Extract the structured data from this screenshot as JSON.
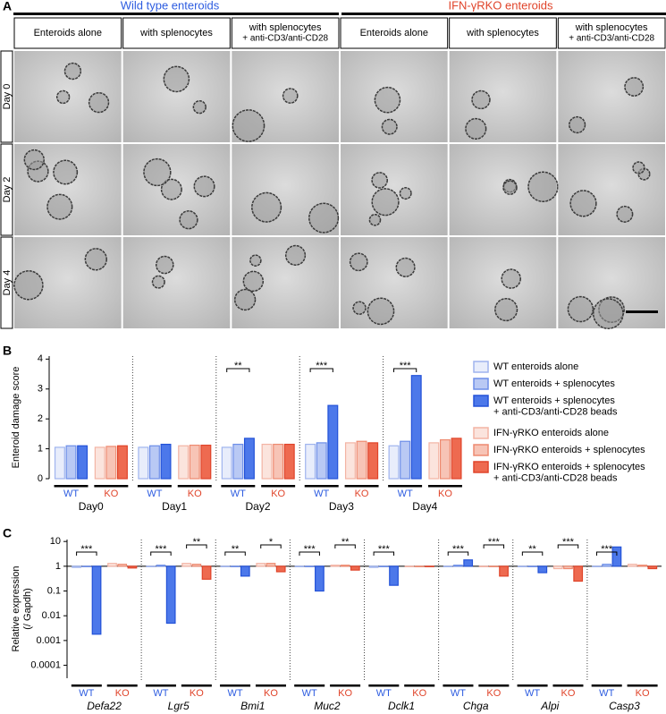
{
  "panel_a": {
    "label": "A",
    "groups": [
      "Wild type enteroids",
      "IFN-γRKO enteroids"
    ],
    "columns": [
      "Enteroids alone",
      "with splenocytes",
      "with splenocytes\n+ anti-CD3/anti-CD28",
      "Enteroids alone",
      "with splenocytes",
      "with splenocytes\n+ anti-CD3/anti-CD28"
    ],
    "rows": [
      "Day 0",
      "Day 2",
      "Day 4"
    ]
  },
  "chart_data": [
    {
      "type": "bar",
      "panel_label": "B",
      "y_label": "Enteroid damage score",
      "categories": [
        "Day0",
        "Day1",
        "Day2",
        "Day3",
        "Day4"
      ],
      "group_labels": [
        "WT",
        "KO"
      ],
      "ylim": [
        0,
        4.1
      ],
      "yticks": [
        0,
        1,
        2,
        3,
        4
      ],
      "legend": "right",
      "series": [
        {
          "name": "WT enteroids alone",
          "color": "#9fb4ee",
          "fill_color": "#e8edfb",
          "values": [
            1.05,
            1.05,
            1.05,
            1.15,
            1.1
          ]
        },
        {
          "name": "WT enteroids + splenocytes",
          "color": "#6d8ee8",
          "fill_color": "#b9c9f4",
          "values": [
            1.1,
            1.1,
            1.15,
            1.2,
            1.25
          ]
        },
        {
          "name": "WT enteroids + splenocytes\n+ anti-CD3/anti-CD28 beads",
          "color": "#2352d8",
          "fill_color": "#4c78ea",
          "values": [
            1.1,
            1.15,
            1.35,
            2.45,
            3.45
          ]
        },
        {
          "name": "IFN-γRKO enteroids alone",
          "color": "#f3b4a4",
          "fill_color": "#fbe4dd",
          "values": [
            1.05,
            1.1,
            1.15,
            1.2,
            1.2
          ]
        },
        {
          "name": "IFN-γRKO enteroids + splenocytes",
          "color": "#ee8a70",
          "fill_color": "#f7c4b6",
          "values": [
            1.08,
            1.12,
            1.15,
            1.25,
            1.3
          ]
        },
        {
          "name": "IFN-γRKO enteroids + splenocytes\n+ anti-CD3/anti-CD28 beads",
          "color": "#e0442a",
          "fill_color": "#ee6a50",
          "values": [
            1.1,
            1.12,
            1.15,
            1.2,
            1.35
          ]
        }
      ],
      "annotations": [
        {
          "category": "Day2",
          "group": "WT",
          "text": "**"
        },
        {
          "category": "Day3",
          "group": "WT",
          "text": "***"
        },
        {
          "category": "Day4",
          "group": "WT",
          "text": "***"
        }
      ]
    },
    {
      "type": "bar",
      "panel_label": "C",
      "y_label": "Relative expression",
      "y_label_note": "(/ Gapdh)",
      "log_scale": true,
      "baseline": 1,
      "categories": [
        "Defa22",
        "Lgr5",
        "Bmi1",
        "Muc2",
        "Dclk1",
        "Chga",
        "Alpi",
        "Casp3"
      ],
      "group_labels": [
        "WT",
        "KO"
      ],
      "ylim": [
        3e-05,
        12
      ],
      "yticks": [
        10,
        1,
        0.1,
        0.01,
        0.001,
        0.0001
      ],
      "series": [
        {
          "color": "#9fb4ee",
          "fill_color": "#e8edfb",
          "values": [
            0.9,
            1,
            1,
            1,
            0.9,
            1,
            1,
            1
          ]
        },
        {
          "color": "#6d8ee8",
          "fill_color": "#b9c9f4",
          "values": [
            1,
            1.1,
            1,
            1,
            1,
            1.1,
            1,
            1.2
          ]
        },
        {
          "color": "#2352d8",
          "fill_color": "#4c78ea",
          "values": [
            0.0018,
            0.005,
            0.4,
            0.1,
            0.17,
            1.8,
            0.55,
            6
          ]
        },
        {
          "color": "#f3b4a4",
          "fill_color": "#fbe4dd",
          "values": [
            1.3,
            1.3,
            1.3,
            1.1,
            1,
            1,
            0.8,
            1.2
          ]
        },
        {
          "color": "#ee8a70",
          "fill_color": "#f7c4b6",
          "values": [
            1.2,
            1.2,
            1.3,
            1.1,
            1,
            1,
            0.8,
            1.1
          ]
        },
        {
          "color": "#e0442a",
          "fill_color": "#ee6a50",
          "values": [
            0.85,
            0.3,
            0.6,
            0.7,
            1,
            0.4,
            0.25,
            0.8
          ]
        }
      ],
      "annotations": [
        {
          "category": "Defa22",
          "group": "WT",
          "text": "***"
        },
        {
          "category": "Lgr5",
          "group": "WT",
          "text": "***"
        },
        {
          "category": "Lgr5",
          "group": "KO",
          "text": "**"
        },
        {
          "category": "Bmi1",
          "group": "WT",
          "text": "**"
        },
        {
          "category": "Bmi1",
          "group": "KO",
          "text": "*"
        },
        {
          "category": "Muc2",
          "group": "WT",
          "text": "***"
        },
        {
          "category": "Muc2",
          "group": "KO",
          "text": "**"
        },
        {
          "category": "Dclk1",
          "group": "WT",
          "text": "***"
        },
        {
          "category": "Chga",
          "group": "WT",
          "text": "***"
        },
        {
          "category": "Chga",
          "group": "KO",
          "text": "***"
        },
        {
          "category": "Alpi",
          "group": "WT",
          "text": "**"
        },
        {
          "category": "Alpi",
          "group": "KO",
          "text": "***"
        },
        {
          "category": "Casp3",
          "group": "WT",
          "text": "***"
        }
      ]
    }
  ]
}
